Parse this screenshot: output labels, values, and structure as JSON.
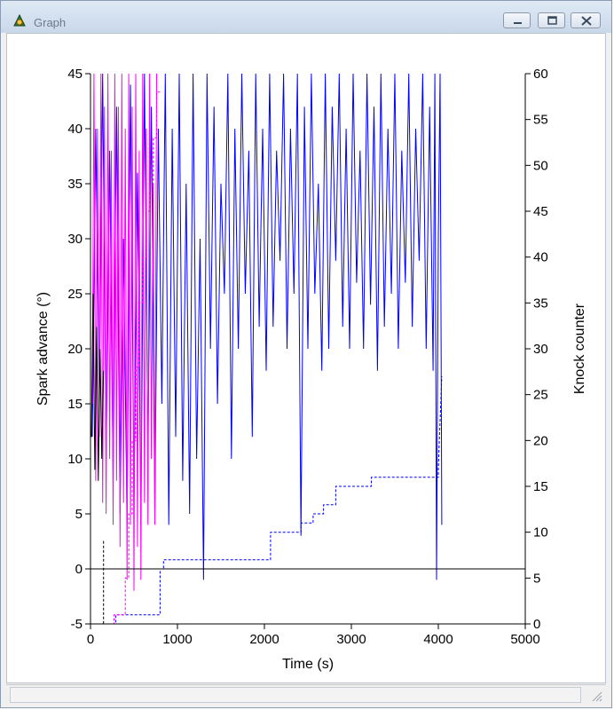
{
  "window": {
    "title": "Graph"
  },
  "icons": {
    "app": "app-chart-icon",
    "minimize": "minimize-icon",
    "restore": "restore-icon",
    "close": "close-icon",
    "grip": "resize-grip-icon"
  },
  "colors": {
    "blue": "#0000ff",
    "magenta": "#ff00ff",
    "black": "#000000"
  },
  "chart_data": {
    "type": "line",
    "xlabel": "Time (s)",
    "ylabel": "Spark advance (°)",
    "y2label": "Knock counter",
    "xlim": [
      0,
      5000
    ],
    "ylim": [
      -5,
      45
    ],
    "y2lim": [
      0,
      60
    ],
    "xticks": [
      0,
      1000,
      2000,
      3000,
      4000,
      5000
    ],
    "yticks": [
      -5,
      0,
      5,
      10,
      15,
      20,
      25,
      30,
      35,
      40,
      45
    ],
    "y2ticks": [
      0,
      5,
      10,
      15,
      20,
      25,
      30,
      35,
      40,
      45,
      50,
      55,
      60
    ],
    "reference_line_y": 0,
    "series": [
      {
        "axis": "left",
        "style": "solid",
        "color": "#0000ff",
        "x": [
          20,
          60,
          100,
          140,
          180,
          220,
          260,
          300,
          340,
          380,
          420,
          460,
          500,
          540,
          580,
          620,
          660,
          700,
          740,
          780,
          820,
          860,
          900,
          940,
          980,
          1020,
          1060,
          1100,
          1140,
          1180,
          1220,
          1260,
          1300,
          1340,
          1380,
          1420,
          1460,
          1500,
          1540,
          1580,
          1620,
          1660,
          1700,
          1740,
          1780,
          1820,
          1860,
          1900,
          1940,
          1980,
          2020,
          2060,
          2100,
          2140,
          2180,
          2220,
          2260,
          2300,
          2340,
          2380,
          2420,
          2460,
          2500,
          2540,
          2580,
          2620,
          2660,
          2700,
          2740,
          2780,
          2820,
          2860,
          2900,
          2940,
          2980,
          3020,
          3060,
          3100,
          3140,
          3180,
          3220,
          3260,
          3300,
          3340,
          3380,
          3420,
          3460,
          3500,
          3540,
          3580,
          3620,
          3660,
          3700,
          3740,
          3780,
          3820,
          3860,
          3900,
          3940,
          3960,
          3980,
          4000,
          4020,
          4040
        ],
        "y": [
          12,
          40,
          15,
          45,
          10,
          38,
          8,
          42,
          5,
          30,
          4,
          44,
          6,
          36,
          4,
          45,
          10,
          42,
          5,
          40,
          15,
          45,
          4,
          40,
          12,
          45,
          8,
          35,
          5,
          45,
          10,
          30,
          -1,
          45,
          20,
          42,
          15,
          35,
          25,
          45,
          10,
          40,
          20,
          45,
          25,
          38,
          12,
          45,
          22,
          40,
          18,
          45,
          22,
          38,
          28,
          45,
          20,
          40,
          25,
          45,
          3,
          42,
          20,
          45,
          25,
          35,
          18,
          45,
          20,
          42,
          28,
          45,
          22,
          40,
          20,
          45,
          26,
          38,
          20,
          45,
          24,
          42,
          18,
          45,
          22,
          40,
          25,
          45,
          20,
          38,
          26,
          45,
          22,
          40,
          28,
          45,
          20,
          42,
          18,
          45,
          -1,
          30,
          45,
          4
        ]
      },
      {
        "axis": "left",
        "style": "solid",
        "color": "#ff00ff",
        "x": [
          20,
          40,
          60,
          80,
          100,
          120,
          140,
          160,
          180,
          200,
          220,
          240,
          260,
          280,
          300,
          320,
          340,
          360,
          380,
          400,
          420,
          440,
          460,
          480,
          500,
          520,
          540,
          560,
          580,
          600,
          620,
          640,
          660,
          680,
          700,
          720,
          740,
          760
        ],
        "y": [
          15,
          45,
          8,
          40,
          12,
          45,
          6,
          42,
          5,
          45,
          10,
          38,
          4,
          45,
          8,
          42,
          2,
          45,
          6,
          40,
          -1,
          45,
          4,
          42,
          -2,
          45,
          2,
          38,
          -1,
          45,
          6,
          40,
          4,
          45,
          10,
          35,
          4,
          45
        ]
      },
      {
        "axis": "left",
        "style": "solid",
        "color": "#000000",
        "x": [
          10,
          30,
          50,
          70,
          90,
          110,
          130,
          150
        ],
        "y": [
          12,
          25,
          9,
          22,
          8,
          20,
          10,
          18
        ]
      },
      {
        "axis": "right",
        "style": "dashed",
        "color": "#0000ff",
        "x": [
          0,
          290,
          290,
          800,
          800,
          840,
          840,
          2070,
          2070,
          2420,
          2420,
          2560,
          2560,
          2680,
          2680,
          2820,
          2820,
          3230,
          3230,
          4000,
          4000,
          4040
        ],
        "y": [
          0,
          0,
          1,
          1,
          6,
          6,
          7,
          7,
          10,
          10,
          11,
          11,
          12,
          12,
          13,
          13,
          15,
          15,
          16,
          16,
          17,
          27
        ]
      },
      {
        "axis": "right",
        "style": "dashed",
        "color": "#ff00ff",
        "x": [
          0,
          270,
          270,
          400,
          400,
          440,
          440,
          480,
          480,
          520,
          520,
          560,
          560,
          600,
          600,
          640,
          640,
          680,
          680,
          720,
          720,
          760,
          760,
          800
        ],
        "y": [
          0,
          0,
          1,
          1,
          5,
          5,
          12,
          12,
          20,
          20,
          28,
          28,
          35,
          35,
          40,
          40,
          45,
          45,
          47,
          47,
          53,
          53,
          58,
          58
        ]
      },
      {
        "axis": "right",
        "style": "dashed",
        "color": "#000000",
        "x": [
          0,
          150,
          150,
          170
        ],
        "y": [
          0,
          0,
          9,
          9
        ]
      }
    ]
  }
}
